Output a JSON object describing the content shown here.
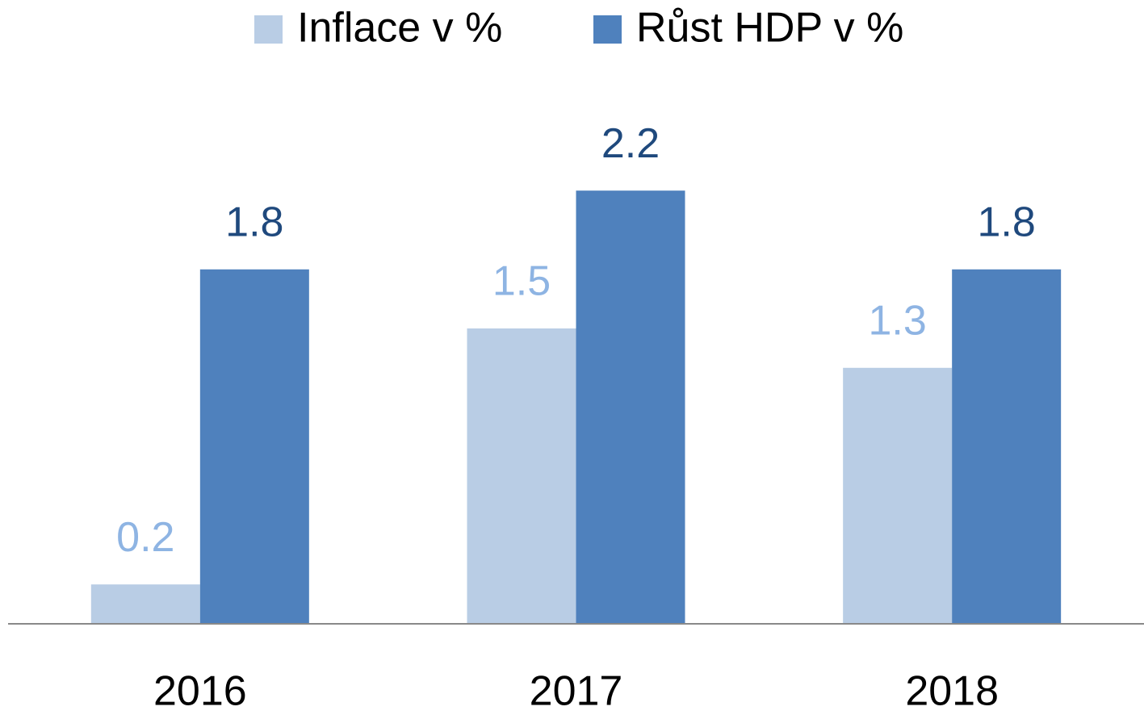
{
  "chart_data": {
    "type": "bar",
    "categories": [
      "2016",
      "2017",
      "2018"
    ],
    "series": [
      {
        "name": "Inflace v %",
        "color": "#b9cde5",
        "label_color": "#8eb4e3",
        "values": [
          0.2,
          1.5,
          1.3
        ]
      },
      {
        "name": "Růst HDP v %",
        "color": "#4f81bd",
        "label_color": "#1f497d",
        "values": [
          1.8,
          2.2,
          1.8
        ]
      }
    ],
    "legend": "top"
  }
}
